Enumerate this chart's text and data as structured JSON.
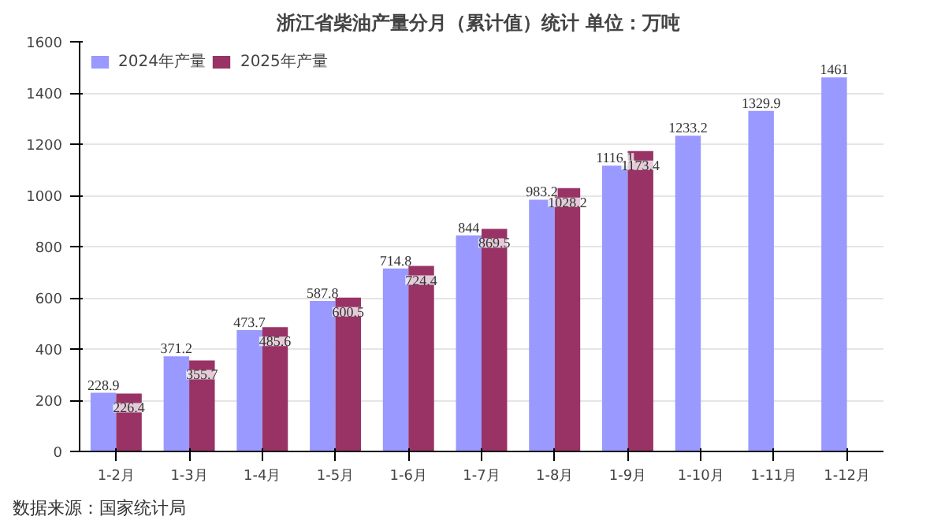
{
  "chart_data": {
    "type": "bar",
    "title": "浙江省柴油产量分月（累计值）统计  单位：万吨",
    "categories": [
      "1-2月",
      "1-3月",
      "1-4月",
      "1-5月",
      "1-6月",
      "1-7月",
      "1-8月",
      "1-9月",
      "1-10月",
      "1-11月",
      "1-12月"
    ],
    "series": [
      {
        "name": "2024年产量",
        "color": "#9999ff",
        "values": [
          228.9,
          371.2,
          473.7,
          587.8,
          714.8,
          844,
          983.2,
          1116.1,
          1233.2,
          1329.9,
          1461
        ]
      },
      {
        "name": "2025年产量",
        "color": "#993366",
        "values": [
          226.4,
          355.7,
          485.6,
          600.5,
          724.4,
          869.5,
          1028.2,
          1173.4,
          null,
          null,
          null
        ]
      }
    ],
    "ylim": [
      0,
      1600
    ],
    "yticks": [
      0,
      200,
      400,
      600,
      800,
      1000,
      1200,
      1400,
      1600
    ],
    "grid": "y",
    "legend": "top left",
    "data_labels": true,
    "annotations": [
      "数据来源：国家统计局"
    ]
  }
}
